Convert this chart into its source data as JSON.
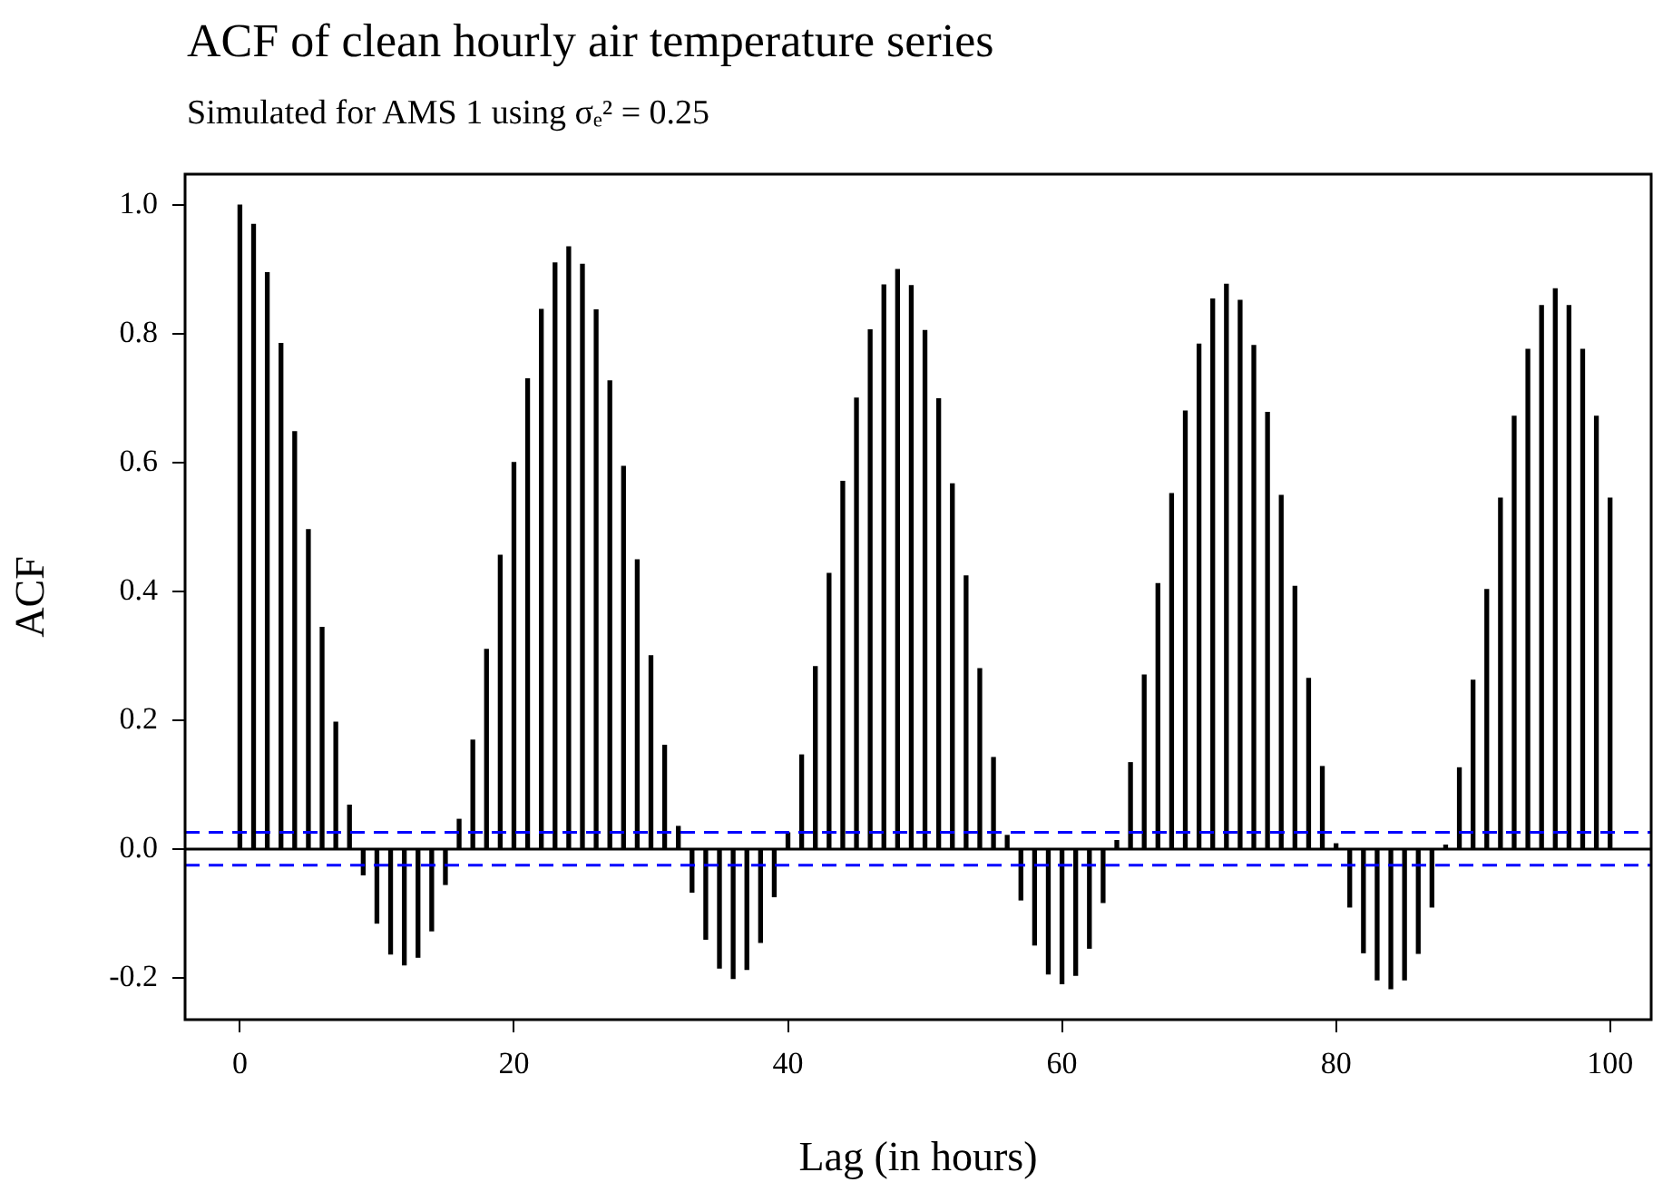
{
  "chart_data": {
    "type": "bar",
    "title": "ACF of clean hourly air temperature series",
    "subtitle": "Simulated for AMS 1 using σₑ² = 0.25",
    "xlabel": "Lag (in hours)",
    "ylabel": "ACF",
    "x": [
      0,
      1,
      2,
      3,
      4,
      5,
      6,
      7,
      8,
      9,
      10,
      11,
      12,
      13,
      14,
      15,
      16,
      17,
      18,
      19,
      20,
      21,
      22,
      23,
      24,
      25,
      26,
      27,
      28,
      29,
      30,
      31,
      32,
      33,
      34,
      35,
      36,
      37,
      38,
      39,
      40,
      41,
      42,
      43,
      44,
      45,
      46,
      47,
      48,
      49,
      50,
      51,
      52,
      53,
      54,
      55,
      56,
      57,
      58,
      59,
      60,
      61,
      62,
      63,
      64,
      65,
      66,
      67,
      68,
      69,
      70,
      71,
      72,
      73,
      74,
      75,
      76,
      77,
      78,
      79,
      80,
      81,
      82,
      83,
      84,
      85,
      86,
      87,
      88,
      89,
      90,
      91,
      92,
      93,
      94,
      95,
      96,
      97,
      98,
      99,
      100
    ],
    "values": [
      1.0,
      0.97,
      0.895,
      0.785,
      0.648,
      0.496,
      0.344,
      0.197,
      0.068,
      -0.04,
      -0.115,
      -0.163,
      -0.18,
      -0.168,
      -0.127,
      -0.055,
      0.046,
      0.169,
      0.31,
      0.456,
      0.6,
      0.73,
      0.838,
      0.91,
      0.935,
      0.908,
      0.837,
      0.727,
      0.594,
      0.449,
      0.3,
      0.161,
      0.035,
      -0.067,
      -0.14,
      -0.185,
      -0.201,
      -0.187,
      -0.145,
      -0.074,
      0.025,
      0.146,
      0.283,
      0.428,
      0.571,
      0.7,
      0.806,
      0.876,
      0.9,
      0.875,
      0.805,
      0.699,
      0.567,
      0.424,
      0.28,
      0.142,
      0.021,
      -0.079,
      -0.149,
      -0.194,
      -0.209,
      -0.196,
      -0.154,
      -0.083,
      0.013,
      0.134,
      0.27,
      0.412,
      0.552,
      0.68,
      0.784,
      0.854,
      0.877,
      0.852,
      0.782,
      0.678,
      0.549,
      0.408,
      0.265,
      0.128,
      0.008,
      -0.09,
      -0.161,
      -0.203,
      -0.217,
      -0.203,
      -0.162,
      -0.09,
      0.006,
      0.126,
      0.262,
      0.403,
      0.545,
      0.672,
      0.776,
      0.844,
      0.87,
      0.844,
      0.776,
      0.672,
      0.545
    ],
    "color": "#000000",
    "xlim": [
      -4,
      103
    ],
    "ylim": [
      -0.265,
      1.048
    ],
    "xticks": [
      0,
      20,
      40,
      60,
      80,
      100
    ],
    "yticks": [
      -0.2,
      {
        "value": 0,
        "label": "0.0"
      },
      0.2,
      0.4,
      0.6,
      0.8,
      {
        "value": 1,
        "label": "1.0"
      }
    ],
    "grid": false,
    "ref_lines": [
      {
        "axis": "y",
        "value": 0,
        "color": "#000000",
        "line_style": "solid"
      },
      {
        "axis": "y",
        "value": 0.026,
        "color": "#0000ff",
        "line_style": "dashed"
      },
      {
        "axis": "y",
        "value": -0.025,
        "color": "#0000ff",
        "line_style": "dashed"
      }
    ]
  }
}
